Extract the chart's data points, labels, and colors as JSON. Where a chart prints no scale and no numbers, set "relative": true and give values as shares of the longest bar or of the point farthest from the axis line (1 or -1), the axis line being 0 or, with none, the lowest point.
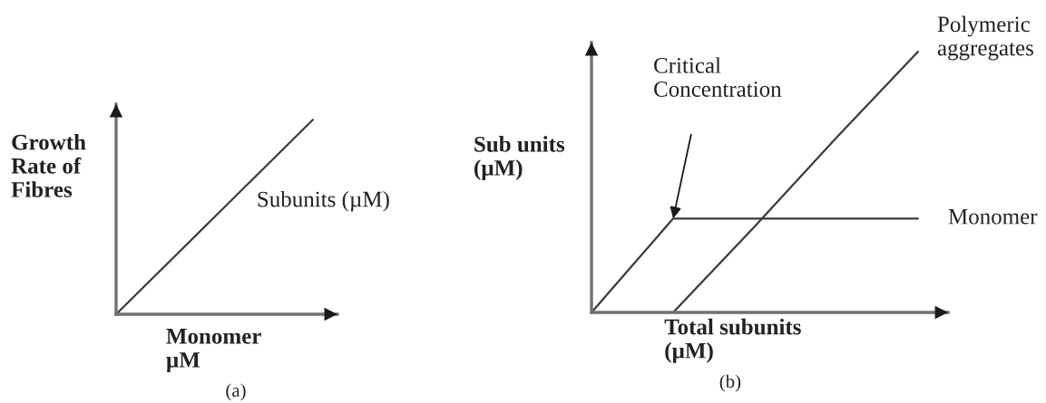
{
  "chart_data": [
    {
      "type": "line",
      "title": "(a)",
      "xlabel": "Monomer\nµM",
      "ylabel": "Growth\nRate of\nFibres",
      "categories": [
        null,
        null
      ],
      "relative": true,
      "line_style": "solid",
      "series": [
        {
          "name": "Subunits (µM)",
          "color": "#3a3a3a",
          "values": [
            0,
            1
          ]
        }
      ]
    },
    {
      "type": "line",
      "title": "(b)",
      "xlabel": "Total subunits\n(µM)",
      "ylabel": "Sub units\n(µM)",
      "categories": [
        null,
        null,
        null,
        null,
        null
      ],
      "relative": true,
      "line_style": "solid",
      "series": [
        {
          "name": "Monomer",
          "color": "#3a3a3a",
          "values": [
            0,
            0.36,
            0.36,
            0.36,
            0.36
          ]
        },
        {
          "name": "Polymeric\naggregates",
          "color": "#3a3a3a",
          "values": [
            null,
            0,
            0.33,
            0.67,
            1
          ]
        }
      ],
      "annotations": [
        "Critical\nConcentration"
      ]
    }
  ]
}
